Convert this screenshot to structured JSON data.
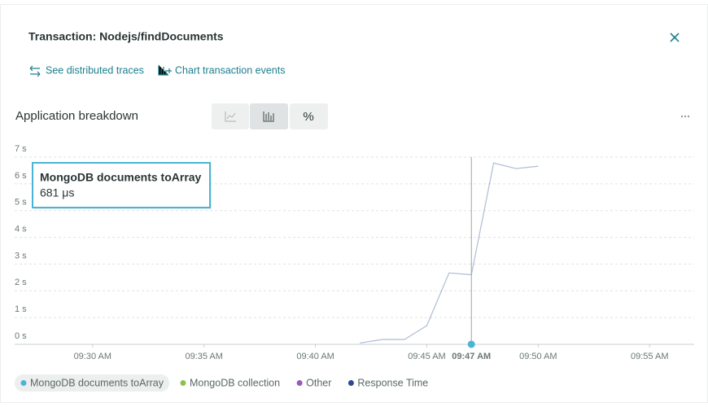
{
  "header": {
    "title": "Transaction: Nodejs/findDocuments"
  },
  "links": [
    "See distributed traces",
    "Chart transaction events"
  ],
  "panel": {
    "title": "Application breakdown",
    "toggles": [
      "%"
    ]
  },
  "chart_data": {
    "type": "line",
    "x": [
      "09:42 AM",
      "09:43 AM",
      "09:44 AM",
      "09:45 AM",
      "09:46 AM",
      "09:47 AM",
      "09:48 AM",
      "09:49 AM",
      "09:50 AM"
    ],
    "series": [
      {
        "name": "MongoDB documents toArray",
        "color": "#49b5d6",
        "values": [
          null,
          null,
          null,
          null,
          null,
          0.000681,
          null,
          null,
          null
        ],
        "value_labels": [
          null,
          null,
          null,
          null,
          null,
          "681 μs",
          null,
          null,
          null
        ]
      },
      {
        "name": "MongoDB collection",
        "color": "#8bc34a",
        "values": [
          null,
          null,
          null,
          null,
          null,
          null,
          null,
          null,
          null
        ]
      },
      {
        "name": "Other",
        "color": "#9b59b6",
        "values": [
          null,
          null,
          null,
          null,
          null,
          null,
          null,
          null,
          null
        ]
      },
      {
        "name": "Response Time",
        "color": "#2c4a8f",
        "values": [
          0.05,
          0.18,
          0.18,
          0.7,
          2.67,
          2.6,
          6.78,
          6.57,
          6.66
        ]
      }
    ],
    "xlim": [
      "09:26:30 AM",
      "09:57 AM"
    ],
    "xticks": [
      "09:30 AM",
      "09:35 AM",
      "09:40 AM",
      "09:45 AM",
      "09:50 AM",
      "09:55 AM"
    ],
    "ylim": [
      0,
      7
    ],
    "yticks": [
      {
        "value": 0,
        "label": "0 s"
      },
      {
        "value": 1,
        "label": "1 s"
      },
      {
        "value": 2,
        "label": "2 s"
      },
      {
        "value": 3,
        "label": "3 s"
      },
      {
        "value": 4,
        "label": "4 s"
      },
      {
        "value": 5,
        "label": "5 s"
      },
      {
        "value": 6,
        "label": "6 s"
      },
      {
        "value": 7,
        "label": "7 s"
      }
    ],
    "grid": true
  }
}
